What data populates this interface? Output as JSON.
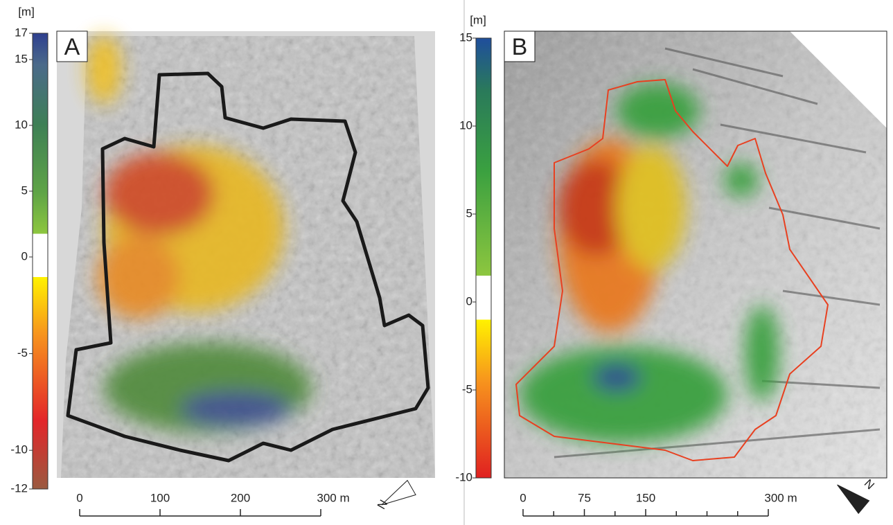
{
  "panels": [
    {
      "label": "A",
      "colorbar": {
        "unit": "[m]",
        "lim": [
          -12,
          17
        ],
        "ticks": [
          17,
          15,
          10,
          5,
          0,
          -5,
          -10,
          -12
        ]
      },
      "scale_bar": {
        "lim": [
          0,
          300
        ],
        "ticks": [
          0,
          100,
          200,
          {
            "value": 300,
            "label": "300 m"
          }
        ],
        "minor_ticks": []
      },
      "north": "N"
    },
    {
      "label": "B",
      "colorbar": {
        "unit": "[m]",
        "lim": [
          -10,
          15
        ],
        "ticks": [
          15,
          10,
          5,
          0,
          -5,
          -10
        ]
      },
      "scale_bar": {
        "lim": [
          0,
          300
        ],
        "ticks": [
          0,
          75,
          150,
          {
            "value": 300,
            "label": "300 m"
          }
        ],
        "minor_ticks": [
          37.5,
          112.5,
          187.5,
          225,
          262.5
        ]
      },
      "north": "N"
    }
  ]
}
